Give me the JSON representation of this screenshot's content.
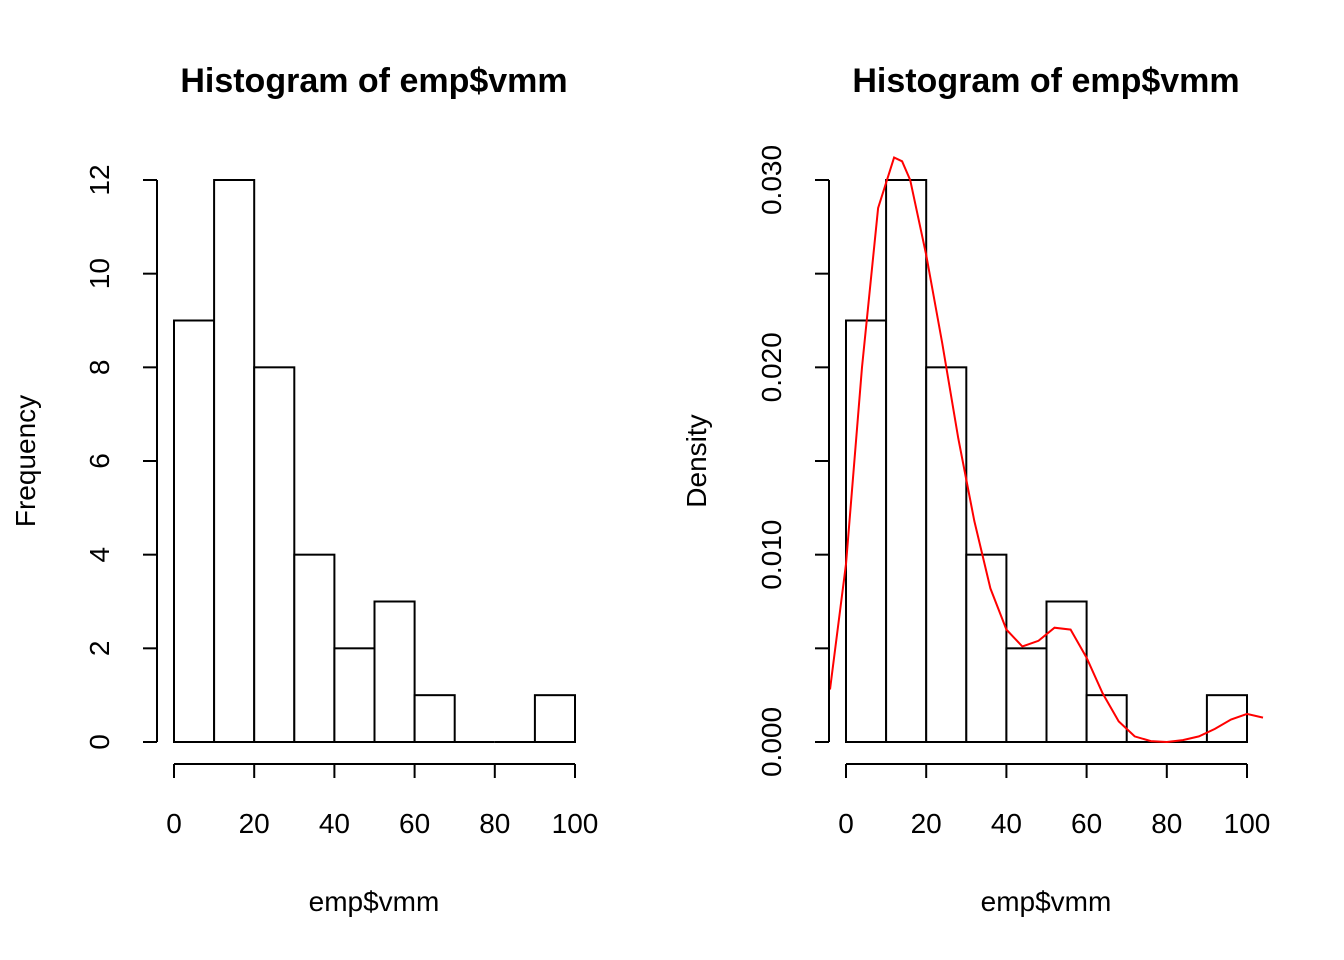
{
  "chart_data": [
    {
      "type": "bar",
      "title": "Histogram of emp$vmm",
      "xlabel": "emp$vmm",
      "ylabel": "Frequency",
      "bins": [
        [
          0,
          10
        ],
        [
          10,
          20
        ],
        [
          20,
          30
        ],
        [
          30,
          40
        ],
        [
          40,
          50
        ],
        [
          50,
          60
        ],
        [
          60,
          70
        ],
        [
          70,
          80
        ],
        [
          80,
          90
        ],
        [
          90,
          100
        ]
      ],
      "values": [
        9,
        12,
        8,
        4,
        2,
        3,
        1,
        0,
        0,
        1
      ],
      "xlim": [
        0,
        100
      ],
      "ylim": [
        0,
        12
      ],
      "x_ticks": [
        "0",
        "20",
        "40",
        "60",
        "80",
        "100"
      ],
      "y_ticks": [
        "0",
        "2",
        "4",
        "6",
        "8",
        "10",
        "12"
      ],
      "grid": false
    },
    {
      "type": "bar",
      "title": "Histogram of emp$vmm",
      "xlabel": "emp$vmm",
      "ylabel": "Density",
      "bins": [
        [
          0,
          10
        ],
        [
          10,
          20
        ],
        [
          20,
          30
        ],
        [
          30,
          40
        ],
        [
          40,
          50
        ],
        [
          50,
          60
        ],
        [
          60,
          70
        ],
        [
          70,
          80
        ],
        [
          80,
          90
        ],
        [
          90,
          100
        ]
      ],
      "values": [
        0.0225,
        0.03,
        0.02,
        0.01,
        0.005,
        0.0075,
        0.0025,
        0,
        0,
        0.0025
      ],
      "xlim": [
        0,
        100
      ],
      "ylim": [
        0,
        0.03
      ],
      "x_ticks": [
        "0",
        "20",
        "40",
        "60",
        "80",
        "100"
      ],
      "y_ticks": [
        "0.000",
        "0.010",
        "0.020",
        "0.030"
      ],
      "grid": false,
      "density_line": {
        "color": "#ff0000",
        "x": [
          -4,
          0,
          4,
          8,
          12,
          14,
          16,
          20,
          24,
          28,
          32,
          36,
          40,
          44,
          48,
          52,
          56,
          60,
          64,
          68,
          72,
          76,
          80,
          84,
          88,
          92,
          96,
          100,
          104
        ],
        "y": [
          0.0028,
          0.0095,
          0.02,
          0.0285,
          0.0312,
          0.031,
          0.03,
          0.026,
          0.0213,
          0.0162,
          0.0118,
          0.0082,
          0.006,
          0.0051,
          0.0054,
          0.0061,
          0.006,
          0.0045,
          0.0026,
          0.0011,
          0.0003,
          5e-05,
          0.0,
          0.0001,
          0.0003,
          0.0007,
          0.0012,
          0.0015,
          0.0013
        ]
      }
    }
  ]
}
